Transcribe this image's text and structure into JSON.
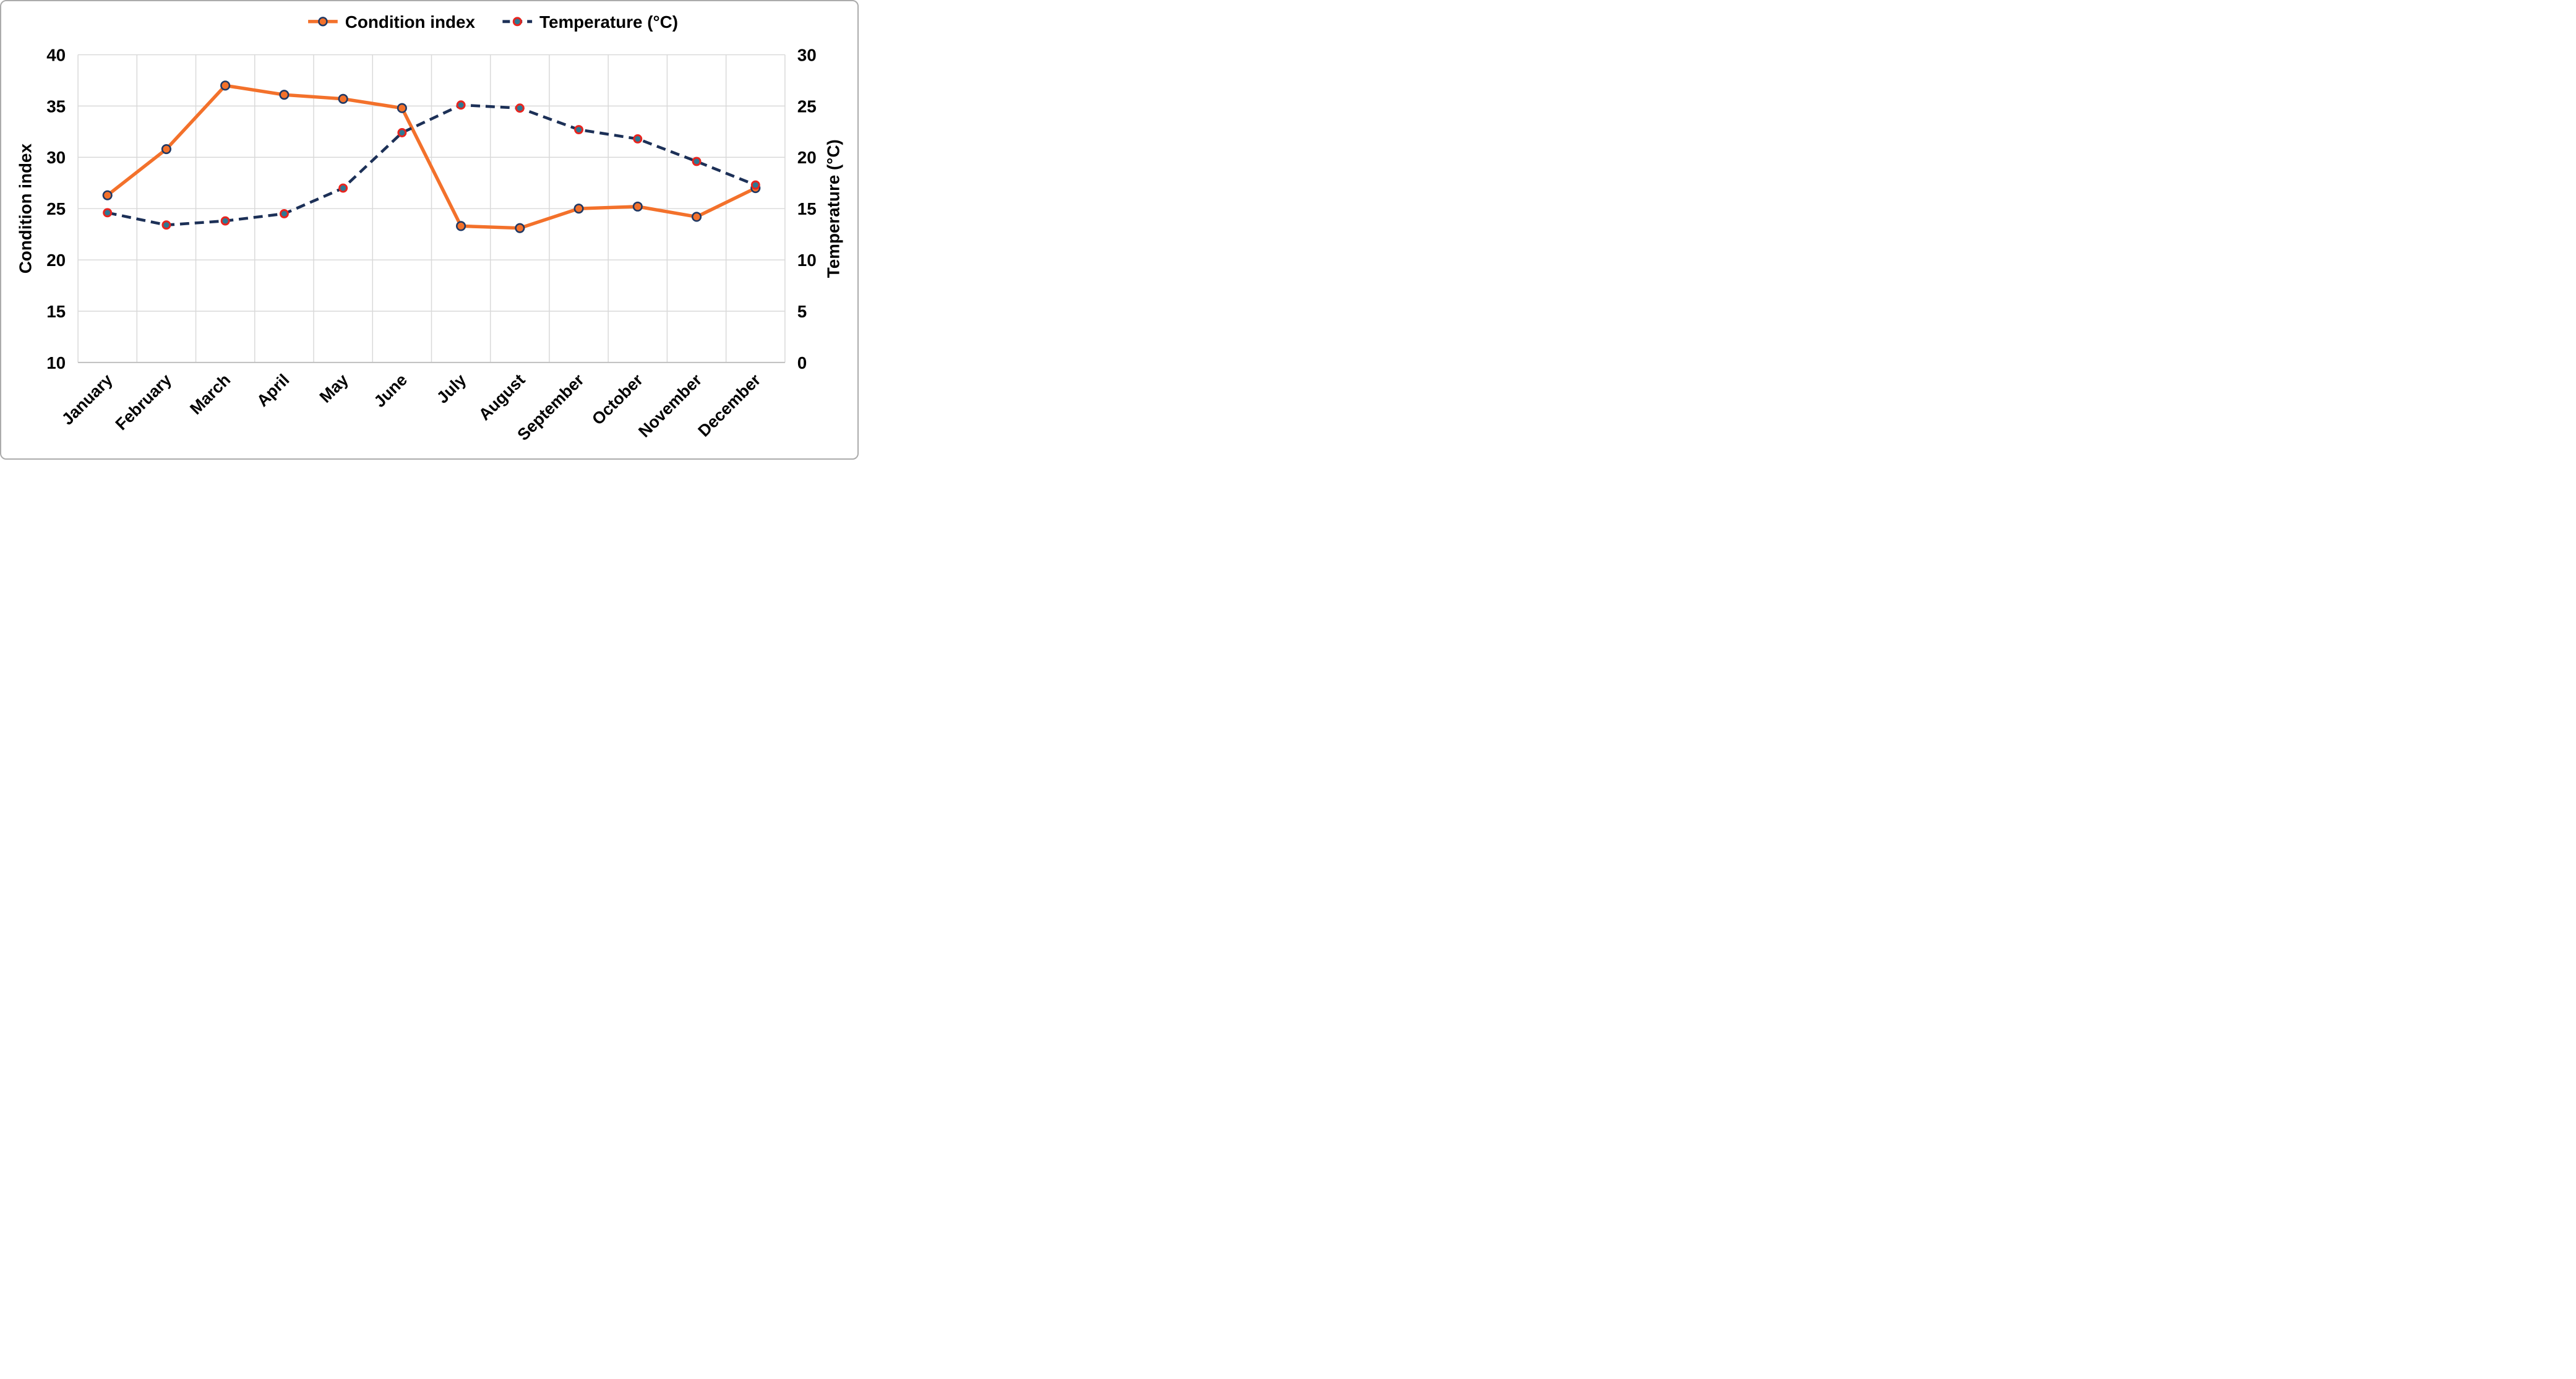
{
  "chart_data": {
    "type": "line",
    "title": "",
    "categories": [
      "January",
      "February",
      "March",
      "April",
      "May",
      "June",
      "July",
      "August",
      "September",
      "October",
      "November",
      "December"
    ],
    "series": [
      {
        "name": "Condition index",
        "axis": "left",
        "line_style": "solid",
        "color": "#f3712b",
        "marker_fill": "#f3712b",
        "marker_stroke": "#1f3864",
        "values": [
          26.3,
          30.8,
          37.0,
          36.1,
          35.7,
          34.8,
          23.3,
          23.1,
          25.0,
          25.2,
          24.2,
          27.0
        ]
      },
      {
        "name": "Temperature (°C)",
        "axis": "right",
        "line_style": "dashed",
        "color": "#1c3057",
        "marker_fill": "#2e7893",
        "marker_stroke": "#e8251f",
        "values": [
          14.6,
          13.4,
          13.8,
          14.5,
          17.0,
          22.4,
          25.1,
          24.8,
          22.7,
          21.8,
          19.6,
          17.3
        ]
      }
    ],
    "left_axis": {
      "label": "Condition index",
      "min": 10,
      "max": 40,
      "step": 5,
      "ticks": [
        40,
        35,
        30,
        25,
        20,
        15,
        10
      ]
    },
    "right_axis": {
      "label": "Temperature (°C)",
      "min": 0,
      "max": 30,
      "step": 5,
      "ticks": [
        30,
        25,
        20,
        15,
        10,
        5,
        0
      ]
    },
    "x_axis": {
      "tick_rotation_deg": -45
    },
    "grid": true,
    "legend_position": "top-center",
    "colors": {
      "grid": "#d9d9d9",
      "axis_line": "#bfbfbf",
      "text": "#000000",
      "background": "#ffffff",
      "frame_border": "#ababab"
    }
  }
}
